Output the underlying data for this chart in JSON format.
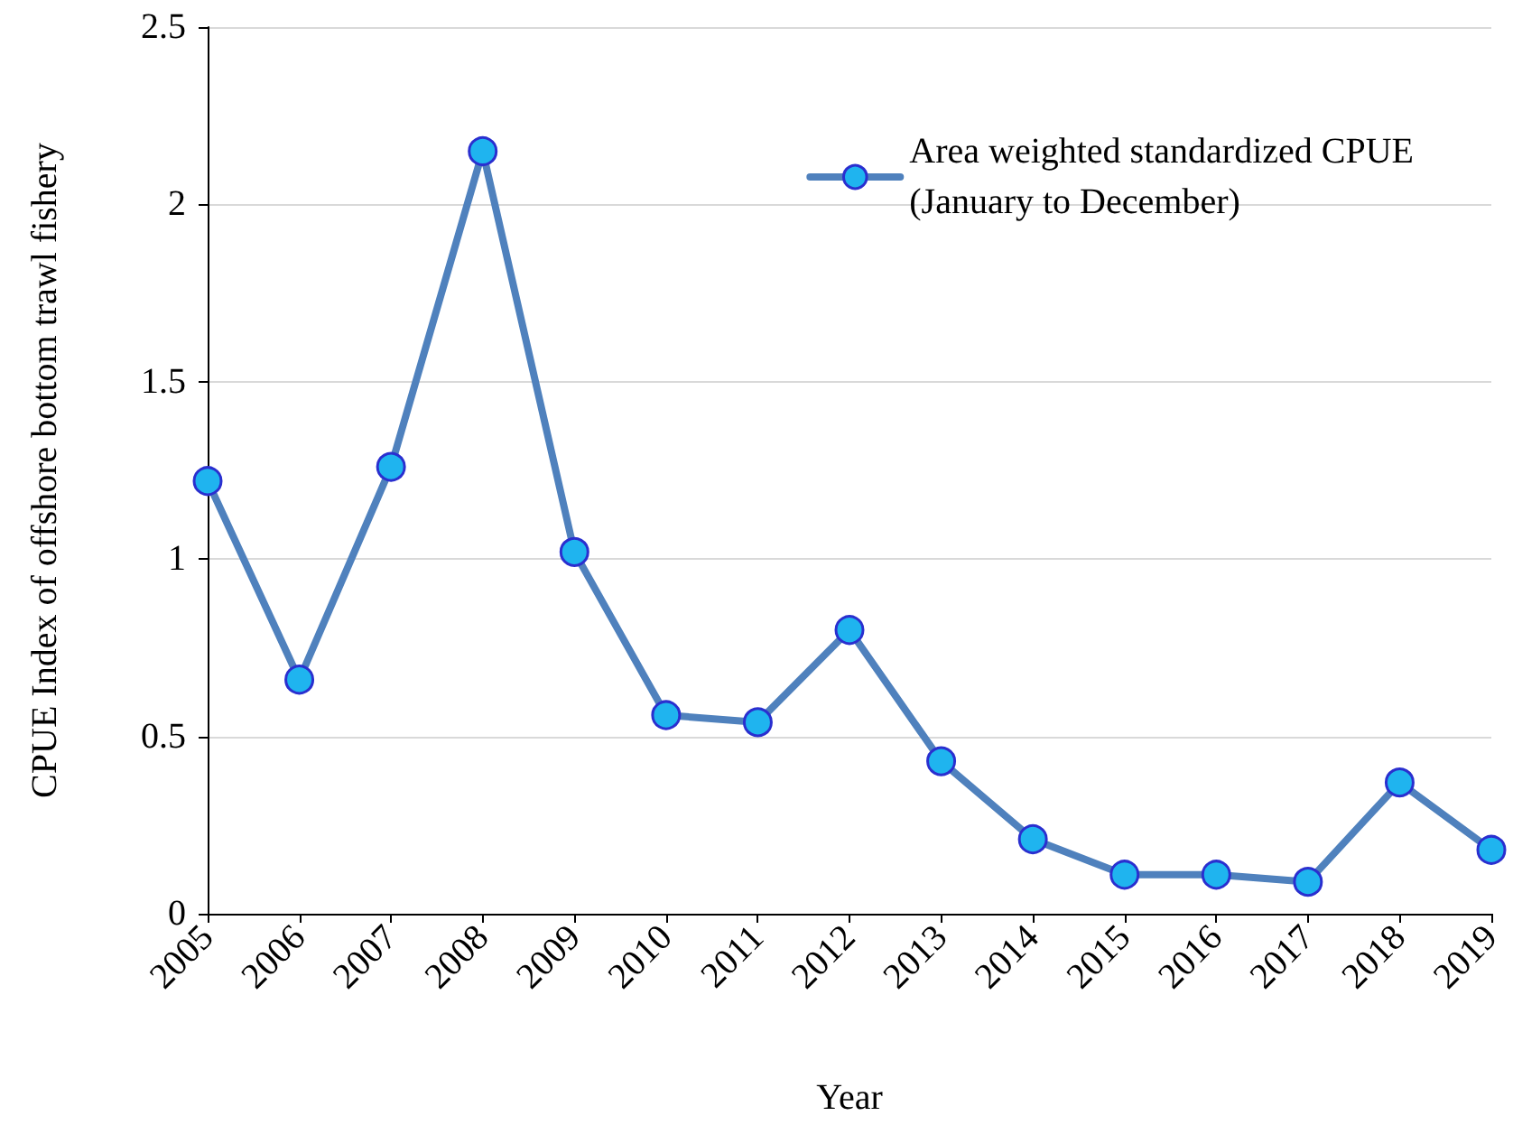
{
  "chart_data": {
    "type": "line",
    "xlabel": "Year",
    "ylabel": "CPUE Index of offshore bottom trawl fishery",
    "categories": [
      "2005",
      "2006",
      "2007",
      "2008",
      "2009",
      "2010",
      "2011",
      "2012",
      "2013",
      "2014",
      "2015",
      "2016",
      "2017",
      "2018",
      "2019"
    ],
    "series": [
      {
        "name": "Area weighted standardized CPUE\n(January to December)",
        "color": "#4f81bd",
        "values": [
          1.22,
          0.66,
          1.26,
          2.15,
          1.02,
          0.56,
          0.54,
          0.8,
          0.43,
          0.21,
          0.11,
          0.11,
          0.09,
          0.37,
          0.18
        ]
      }
    ],
    "ylim": [
      0,
      2.5
    ],
    "yticks": [
      0,
      0.5,
      1,
      1.5,
      2,
      2.5
    ],
    "grid": "y",
    "legend": "top right",
    "marker": "circle",
    "line_style": "solid"
  }
}
